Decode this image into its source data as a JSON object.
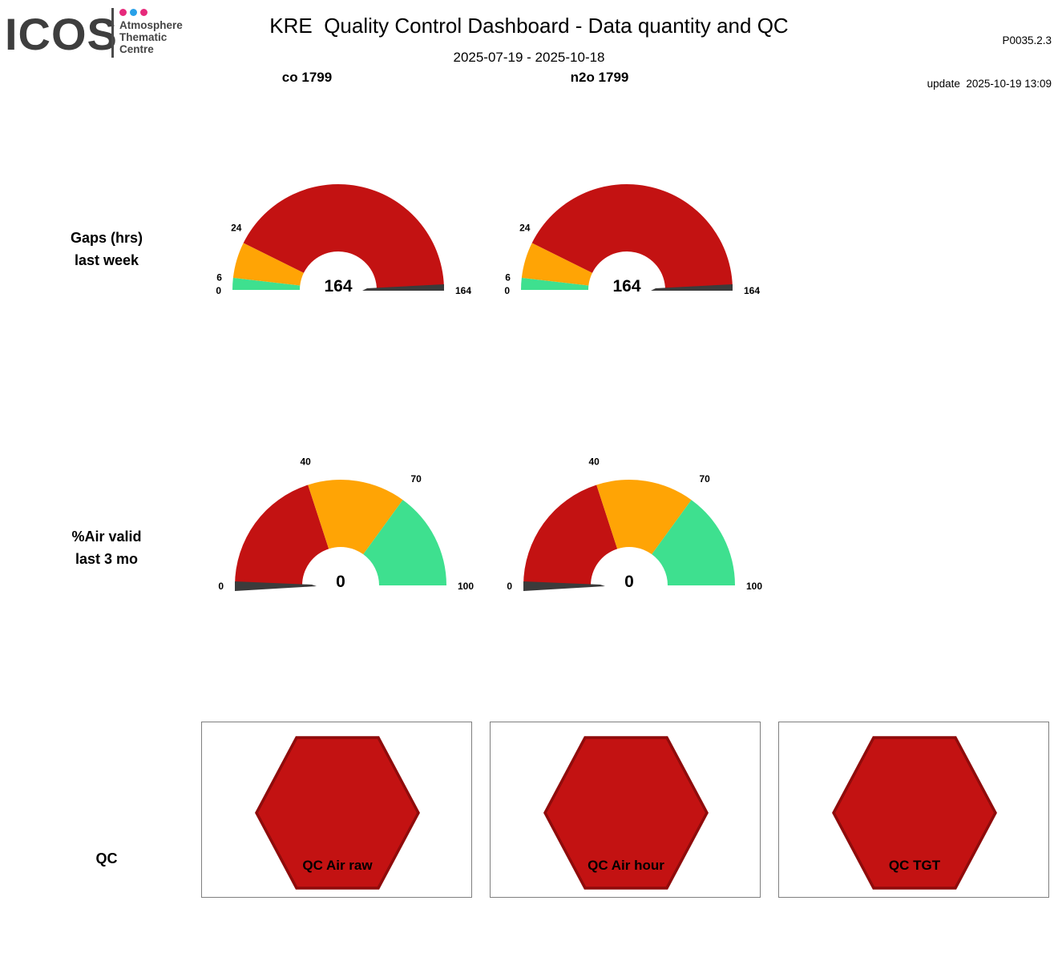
{
  "logo": {
    "brand": "ICOS",
    "org_lines": "Atmosphere\nThematic\nCentre",
    "dot_colors": [
      "#E62A7B",
      "#28A0E8",
      "#E62A7B"
    ]
  },
  "header": {
    "title": "KRE  Quality Control Dashboard - Data quantity and QC",
    "date_range": "2025-07-19 - 2025-10-18",
    "product_code": "P0035.2.3",
    "update_line": "update  2025-10-19 13:09"
  },
  "columns": [
    {
      "label": "co 1799"
    },
    {
      "label": "n2o 1799"
    }
  ],
  "rows": [
    {
      "label_line1": "Gaps (hrs)",
      "label_line2": "last week"
    },
    {
      "label_line1": "%Air valid",
      "label_line2": "last 3 mo"
    },
    {
      "label_line1": "QC"
    }
  ],
  "colors": {
    "red": "#C31212",
    "orange": "#FFA405",
    "green": "#3EE08F",
    "needle": "#3B3B3B",
    "hex_border": "#8F0B0B",
    "box_border": "#7F7F7F"
  },
  "chart_data": [
    {
      "type": "gauge",
      "row": "Gaps (hrs) last week",
      "column": "co 1799",
      "min": 0,
      "max": 164,
      "value": 164,
      "ticks": [
        0,
        6,
        24,
        164
      ],
      "segments": [
        {
          "from": 0,
          "to": 6,
          "color": "green"
        },
        {
          "from": 6,
          "to": 24,
          "color": "orange"
        },
        {
          "from": 24,
          "to": 164,
          "color": "red"
        }
      ]
    },
    {
      "type": "gauge",
      "row": "Gaps (hrs) last week",
      "column": "n2o 1799",
      "min": 0,
      "max": 164,
      "value": 164,
      "ticks": [
        0,
        6,
        24,
        164
      ],
      "segments": [
        {
          "from": 0,
          "to": 6,
          "color": "green"
        },
        {
          "from": 6,
          "to": 24,
          "color": "orange"
        },
        {
          "from": 24,
          "to": 164,
          "color": "red"
        }
      ]
    },
    {
      "type": "gauge",
      "row": "%Air valid last 3 mo",
      "column": "co 1799",
      "min": 0,
      "max": 100,
      "value": 0,
      "ticks": [
        0,
        40,
        70,
        100
      ],
      "segments": [
        {
          "from": 0,
          "to": 40,
          "color": "red"
        },
        {
          "from": 40,
          "to": 70,
          "color": "orange"
        },
        {
          "from": 70,
          "to": 100,
          "color": "green"
        }
      ]
    },
    {
      "type": "gauge",
      "row": "%Air valid last 3 mo",
      "column": "n2o 1799",
      "min": 0,
      "max": 100,
      "value": 0,
      "ticks": [
        0,
        40,
        70,
        100
      ],
      "segments": [
        {
          "from": 0,
          "to": 40,
          "color": "red"
        },
        {
          "from": 40,
          "to": 70,
          "color": "orange"
        },
        {
          "from": 70,
          "to": 100,
          "color": "green"
        }
      ]
    },
    {
      "type": "status-hexagons",
      "row": "QC",
      "items": [
        {
          "label": "QC Air raw",
          "color": "red"
        },
        {
          "label": "QC Air hour",
          "color": "red"
        },
        {
          "label": "QC TGT",
          "color": "red"
        }
      ]
    }
  ]
}
